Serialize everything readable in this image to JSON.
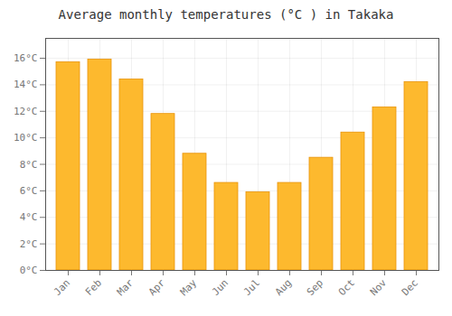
{
  "chart_data": {
    "type": "bar",
    "title": "Average monthly temperatures (°C ) in Takaka",
    "categories": [
      "Jan",
      "Feb",
      "Mar",
      "Apr",
      "May",
      "Jun",
      "Jul",
      "Aug",
      "Sep",
      "Oct",
      "Nov",
      "Dec"
    ],
    "values": [
      15.7,
      15.9,
      14.4,
      11.8,
      8.8,
      6.6,
      5.9,
      6.6,
      8.5,
      10.4,
      12.3,
      14.2
    ],
    "color": "#FDB92E",
    "ylim": [
      0,
      17.5
    ],
    "yticks": [
      {
        "value": 0,
        "label": "0°C"
      },
      {
        "value": 2,
        "label": "2°C"
      },
      {
        "value": 4,
        "label": "4°C"
      },
      {
        "value": 6,
        "label": "6°C"
      },
      {
        "value": 8,
        "label": "8°C"
      },
      {
        "value": 10,
        "label": "10°C"
      },
      {
        "value": 12,
        "label": "12°C"
      },
      {
        "value": 14,
        "label": "14°C"
      },
      {
        "value": 16,
        "label": "16°C"
      }
    ],
    "grid": true
  }
}
